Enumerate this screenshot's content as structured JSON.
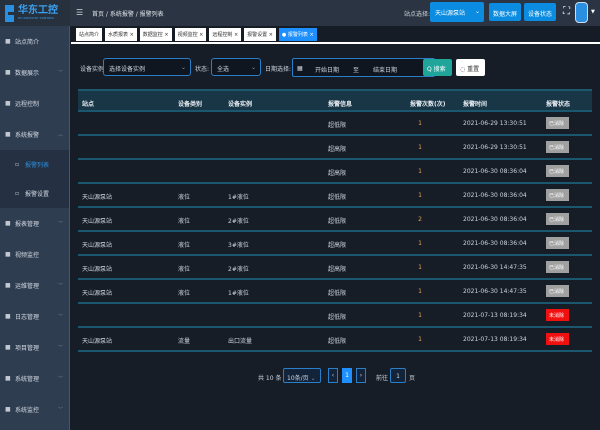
{
  "header": {
    "logo_text": "华东工控",
    "logo_sub": "HD INDUSTRY CONTROL",
    "breadcrumb": "首页 / 系统报警 / 报警列表",
    "site_label": "站点选择:",
    "site_value": "天山源泵站",
    "btn_screen": "数据大屏",
    "btn_status": "设备状态"
  },
  "sidebar": {
    "items": [
      {
        "label": "站点简介",
        "icon": "home-icon",
        "chev": ""
      },
      {
        "label": "数据展示",
        "icon": "chevron-icon",
        "chev": "﹀"
      },
      {
        "label": "远程控制",
        "icon": "control-icon",
        "chev": ""
      },
      {
        "label": "系统报警",
        "icon": "bell-icon",
        "chev": "︿"
      },
      {
        "label": "报警列表",
        "icon": "list-icon",
        "sub": true,
        "active": true
      },
      {
        "label": "报警设置",
        "icon": "settings-icon",
        "sub": true
      },
      {
        "label": "报表管理",
        "icon": "report-icon",
        "chev": "﹀"
      },
      {
        "label": "视频监控",
        "icon": "video-icon",
        "chev": ""
      },
      {
        "label": "运维管理",
        "icon": "tools-icon",
        "chev": "﹀"
      },
      {
        "label": "日志管理",
        "icon": "log-icon",
        "chev": "﹀"
      },
      {
        "label": "项目管理",
        "icon": "project-icon",
        "chev": "﹀"
      },
      {
        "label": "系统管理",
        "icon": "gear-icon",
        "chev": "﹀"
      },
      {
        "label": "系统监控",
        "icon": "monitor-icon",
        "chev": "﹀"
      }
    ]
  },
  "tabs": [
    "站点简介",
    "水质报表 ×",
    "数据监控 ×",
    "视频监控 ×",
    "远程控制 ×",
    "报警设置 ×",
    "● 报警列表 ×"
  ],
  "filters": {
    "device_label": "设备实例",
    "device_placeholder": "选择设备实例",
    "state_label": "状态:",
    "state_value": "全选",
    "date_label": "日期选择:",
    "start_placeholder": "开始日期",
    "to": "至",
    "end_placeholder": "结束日期",
    "search": "Q 搜索",
    "reset": "◌ 重置"
  },
  "table": {
    "headers": [
      "站点",
      "设备类别",
      "设备实例",
      "报警信息",
      "报警次数(次)",
      "报警时间",
      "报警状态"
    ],
    "rows": [
      [
        "",
        "",
        "",
        "超低限",
        "1",
        "2021-06-29 13:30:51",
        "已消除"
      ],
      [
        "",
        "",
        "",
        "超高限",
        "1",
        "2021-06-29 13:30:51",
        "已消除"
      ],
      [
        "",
        "",
        "",
        "超高限",
        "1",
        "2021-06-30 08:36:04",
        "已消除"
      ],
      [
        "天山源泵站",
        "液位",
        "1#液位",
        "超低限",
        "1",
        "2021-06-30 08:36:04",
        "已消除"
      ],
      [
        "天山源泵站",
        "液位",
        "2#液位",
        "超低限",
        "2",
        "2021-06-30 08:36:04",
        "已消除"
      ],
      [
        "天山源泵站",
        "液位",
        "3#液位",
        "超高限",
        "1",
        "2021-06-30 08:36:04",
        "已消除"
      ],
      [
        "天山源泵站",
        "液位",
        "2#液位",
        "超高限",
        "1",
        "2021-06-30 14:47:35",
        "已消除"
      ],
      [
        "天山源泵站",
        "液位",
        "1#液位",
        "超低限",
        "1",
        "2021-06-30 14:47:35",
        "已消除"
      ],
      [
        "",
        "",
        "",
        "超低限",
        "1",
        "2021-07-13 08:19:34",
        "未消除"
      ],
      [
        "天山源泵站",
        "流量",
        "出口流量",
        "超低限",
        "1",
        "2021-07-13 08:19:34",
        "未消除"
      ]
    ]
  },
  "status_colors": {
    "已消除": "#a0a0a0",
    "未消除": "#f01010"
  },
  "pagination": {
    "total": "共 10 条",
    "page_size": "10条/页",
    "current": "1",
    "goto_label": "前往",
    "goto_value": "1",
    "page_suffix": "页"
  }
}
